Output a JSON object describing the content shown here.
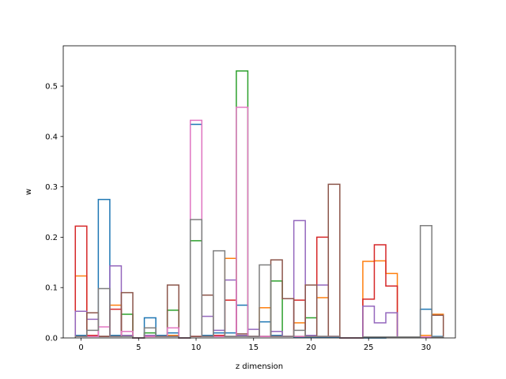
{
  "chart_data": {
    "type": "step-histogram",
    "xlabel": "z dimension",
    "ylabel": "w",
    "xlim": [
      -1.55,
      32.55
    ],
    "ylim": [
      0,
      0.58
    ],
    "xticks": [
      0,
      5,
      10,
      15,
      20,
      25,
      30
    ],
    "yticks": [
      0.0,
      0.1,
      0.2,
      0.3,
      0.4,
      0.5
    ],
    "bin_start": -0.5,
    "bin_width": 1,
    "grid": false,
    "series": [
      {
        "color": "#1f77b4",
        "values": [
          0.005,
          0.003,
          0.275,
          0.005,
          0.005,
          0,
          0.04,
          0.005,
          0.01,
          0,
          0.424,
          0.005,
          0.01,
          0.01,
          0.065,
          0.003,
          0.032,
          0.005,
          0.003,
          0.002,
          0.002,
          0.002,
          0.002,
          0,
          0,
          0,
          0,
          0.002,
          0.002,
          0.002,
          0.057,
          0.003
        ]
      },
      {
        "color": "#ff7f0e",
        "values": [
          0.123,
          0.003,
          0.003,
          0.065,
          0.005,
          0,
          0.005,
          0.003,
          0.005,
          0,
          0.003,
          0.003,
          0.005,
          0.158,
          0.005,
          0.003,
          0.06,
          0.003,
          0.003,
          0.03,
          0.003,
          0.08,
          0.003,
          0,
          0,
          0.152,
          0.153,
          0.128,
          0.002,
          0.002,
          0.005,
          0.047
        ]
      },
      {
        "color": "#2ca02c",
        "values": [
          0.003,
          0.003,
          0.003,
          0.003,
          0.047,
          0,
          0.01,
          0.003,
          0.055,
          0,
          0.193,
          0.003,
          0.003,
          0.003,
          0.53,
          0.003,
          0.003,
          0.113,
          0.003,
          0.003,
          0.04,
          0.003,
          0.003,
          0,
          0,
          0.002,
          0.002,
          0.002,
          0.002,
          0.002,
          0.002,
          0.002
        ]
      },
      {
        "color": "#d62728",
        "values": [
          0.222,
          0.005,
          0.003,
          0.057,
          0.005,
          0,
          0.003,
          0.003,
          0.003,
          0,
          0.003,
          0.003,
          0.005,
          0.075,
          0.005,
          0.003,
          0.003,
          0.003,
          0.003,
          0.075,
          0.003,
          0.2,
          0.003,
          0,
          0,
          0.077,
          0.185,
          0.103,
          0.002,
          0.002,
          0.002,
          0.002
        ]
      },
      {
        "color": "#9467bd",
        "values": [
          0.053,
          0.037,
          0.003,
          0.143,
          0.005,
          0,
          0.005,
          0.003,
          0.003,
          0,
          0.003,
          0.043,
          0.015,
          0.115,
          0.005,
          0.017,
          0.003,
          0.013,
          0.003,
          0.233,
          0.005,
          0.105,
          0.003,
          0,
          0,
          0.063,
          0.03,
          0.05,
          0.002,
          0.002,
          0.002,
          0.002
        ]
      },
      {
        "color": "#8c564b",
        "values": [
          0.003,
          0.05,
          0.003,
          0.003,
          0.09,
          0,
          0.003,
          0.003,
          0.105,
          0,
          0.003,
          0.085,
          0.003,
          0.003,
          0.008,
          0.003,
          0.003,
          0.155,
          0.078,
          0.003,
          0.105,
          0.003,
          0.305,
          0,
          0,
          0.002,
          0.002,
          0.002,
          0.002,
          0.002,
          0.002,
          0.045
        ]
      },
      {
        "color": "#e377c2",
        "values": [
          0.003,
          0.003,
          0.022,
          0.003,
          0.013,
          0,
          0.003,
          0.003,
          0.02,
          0,
          0.432,
          0.003,
          0.003,
          0.003,
          0.458,
          0.003,
          0.003,
          0.003,
          0.003,
          0.003,
          0.003,
          0.003,
          0.003,
          0,
          0,
          0.002,
          0.002,
          0.002,
          0.002,
          0.002,
          0.002,
          0.002
        ]
      },
      {
        "color": "#7f7f7f",
        "values": [
          0.003,
          0.015,
          0.098,
          0.003,
          0.003,
          0,
          0.02,
          0.003,
          0.003,
          0,
          0.235,
          0.003,
          0.173,
          0.003,
          0.003,
          0.003,
          0.145,
          0.003,
          0.003,
          0.015,
          0.003,
          0.003,
          0.003,
          0,
          0,
          0.002,
          0.002,
          0.002,
          0.002,
          0.002,
          0.223,
          0.002
        ]
      }
    ]
  }
}
